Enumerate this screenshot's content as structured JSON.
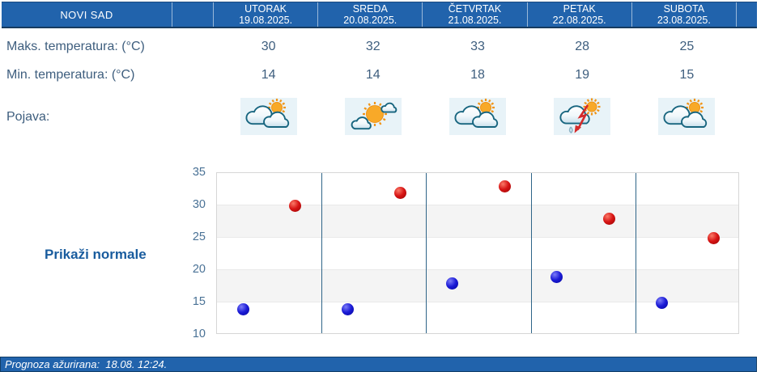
{
  "location": "NOVI SAD",
  "table": {
    "max_label": "Maks. temperatura: (°C)",
    "min_label": "Min. temperatura: (°C)",
    "phenomenon_label": "Pojava:"
  },
  "days": [
    {
      "name": "UTORAK",
      "date": "19.08.2025.",
      "max": 30,
      "min": 14,
      "icon": "sun-behind-clouds"
    },
    {
      "name": "SREDA",
      "date": "20.08.2025.",
      "max": 32,
      "min": 14,
      "icon": "sun-with-small-clouds"
    },
    {
      "name": "ČETVRTAK",
      "date": "21.08.2025.",
      "max": 33,
      "min": 18,
      "icon": "sun-behind-clouds"
    },
    {
      "name": "PETAK",
      "date": "22.08.2025.",
      "max": 28,
      "min": 19,
      "icon": "thunderstorm-with-sun"
    },
    {
      "name": "SUBOTA",
      "date": "23.08.2025.",
      "max": 25,
      "min": 15,
      "icon": "sun-behind-clouds"
    }
  ],
  "normals_button_label": "Prikaži normale",
  "footer": {
    "updated_text": "Prognoza ažurirana:  18.08. 12:24."
  },
  "colors": {
    "header_blue": "#2163ac",
    "max_dot_red": "#d01010",
    "min_dot_blue": "#1515cf",
    "text_blue": "#3e5e7e",
    "axis_label_blue": "#4a7296",
    "day_separator_blue": "#2f6588",
    "icon_background": "#e8f3f8"
  },
  "chart_data": {
    "type": "scatter",
    "title": "",
    "categories": [
      "UTORAK 19.08.2025.",
      "SREDA 20.08.2025.",
      "ČETVRTAK 21.08.2025.",
      "PETAK 22.08.2025.",
      "SUBOTA 23.08.2025."
    ],
    "series": [
      {
        "name": "Maks. temperatura (°C)",
        "color": "#d01010",
        "values": [
          30,
          32,
          33,
          28,
          25
        ]
      },
      {
        "name": "Min. temperatura (°C)",
        "color": "#1515cf",
        "values": [
          14,
          14,
          18,
          19,
          15
        ]
      }
    ],
    "ylim": [
      10,
      35
    ],
    "yticks": [
      35,
      30,
      25,
      20,
      15,
      10
    ],
    "xlabel": "",
    "ylabel": "",
    "legend_position": "none",
    "grid": "alternating horizontal bands every 5°C, vertical separators between days"
  }
}
